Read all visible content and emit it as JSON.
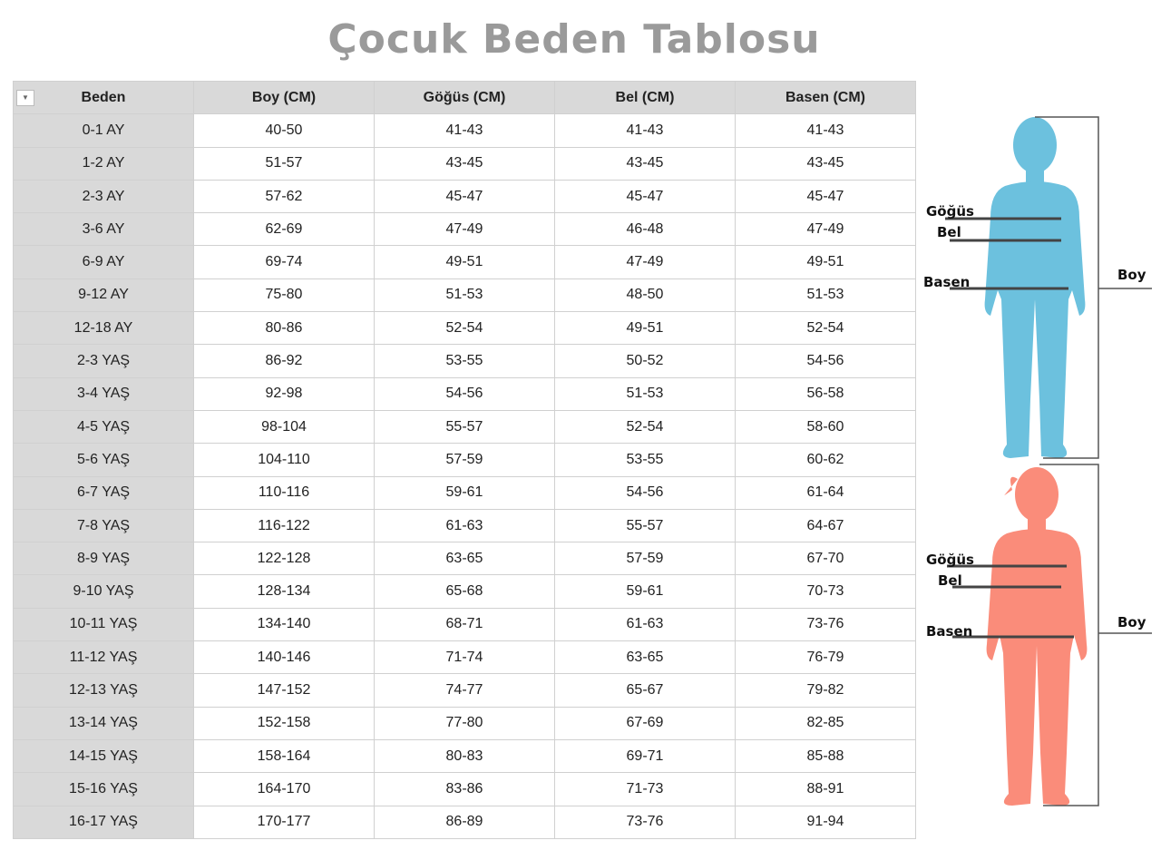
{
  "title": "Çocuk Beden Tablosu",
  "table": {
    "headers": [
      "Beden",
      "Boy (CM)",
      "Göğüs (CM)",
      "Bel (CM)",
      "Basen (CM)"
    ],
    "rows": [
      [
        "0-1 AY",
        "40-50",
        "41-43",
        "41-43",
        "41-43"
      ],
      [
        "1-2 AY",
        "51-57",
        "43-45",
        "43-45",
        "43-45"
      ],
      [
        "2-3 AY",
        "57-62",
        "45-47",
        "45-47",
        "45-47"
      ],
      [
        "3-6 AY",
        "62-69",
        "47-49",
        "46-48",
        "47-49"
      ],
      [
        "6-9 AY",
        "69-74",
        "49-51",
        "47-49",
        "49-51"
      ],
      [
        "9-12 AY",
        "75-80",
        "51-53",
        "48-50",
        "51-53"
      ],
      [
        "12-18 AY",
        "80-86",
        "52-54",
        "49-51",
        "52-54"
      ],
      [
        "2-3 YAŞ",
        "86-92",
        "53-55",
        "50-52",
        "54-56"
      ],
      [
        "3-4 YAŞ",
        "92-98",
        "54-56",
        "51-53",
        "56-58"
      ],
      [
        "4-5 YAŞ",
        "98-104",
        "55-57",
        "52-54",
        "58-60"
      ],
      [
        "5-6 YAŞ",
        "104-110",
        "57-59",
        "53-55",
        "60-62"
      ],
      [
        "6-7 YAŞ",
        "110-116",
        "59-61",
        "54-56",
        "61-64"
      ],
      [
        "7-8 YAŞ",
        "116-122",
        "61-63",
        "55-57",
        "64-67"
      ],
      [
        "8-9 YAŞ",
        "122-128",
        "63-65",
        "57-59",
        "67-70"
      ],
      [
        "9-10 YAŞ",
        "128-134",
        "65-68",
        "59-61",
        "70-73"
      ],
      [
        "10-11 YAŞ",
        "134-140",
        "68-71",
        "61-63",
        "73-76"
      ],
      [
        "11-12 YAŞ",
        "140-146",
        "71-74",
        "63-65",
        "76-79"
      ],
      [
        "12-13 YAŞ",
        "147-152",
        "74-77",
        "65-67",
        "79-82"
      ],
      [
        "13-14 YAŞ",
        "152-158",
        "77-80",
        "67-69",
        "82-85"
      ],
      [
        "14-15 YAŞ",
        "158-164",
        "80-83",
        "69-71",
        "85-88"
      ],
      [
        "15-16 YAŞ",
        "164-170",
        "83-86",
        "71-73",
        "88-91"
      ],
      [
        "16-17 YAŞ",
        "170-177",
        "86-89",
        "73-76",
        "91-94"
      ]
    ]
  },
  "figures": {
    "boy": {
      "color": "#6cc1de",
      "labels": {
        "chest": "Göğüs",
        "waist": "Bel",
        "hip": "Basen",
        "height": "Boy"
      }
    },
    "girl": {
      "color": "#fa8c7a",
      "labels": {
        "chest": "Göğüs",
        "waist": "Bel",
        "hip": "Basen",
        "height": "Boy"
      }
    }
  }
}
